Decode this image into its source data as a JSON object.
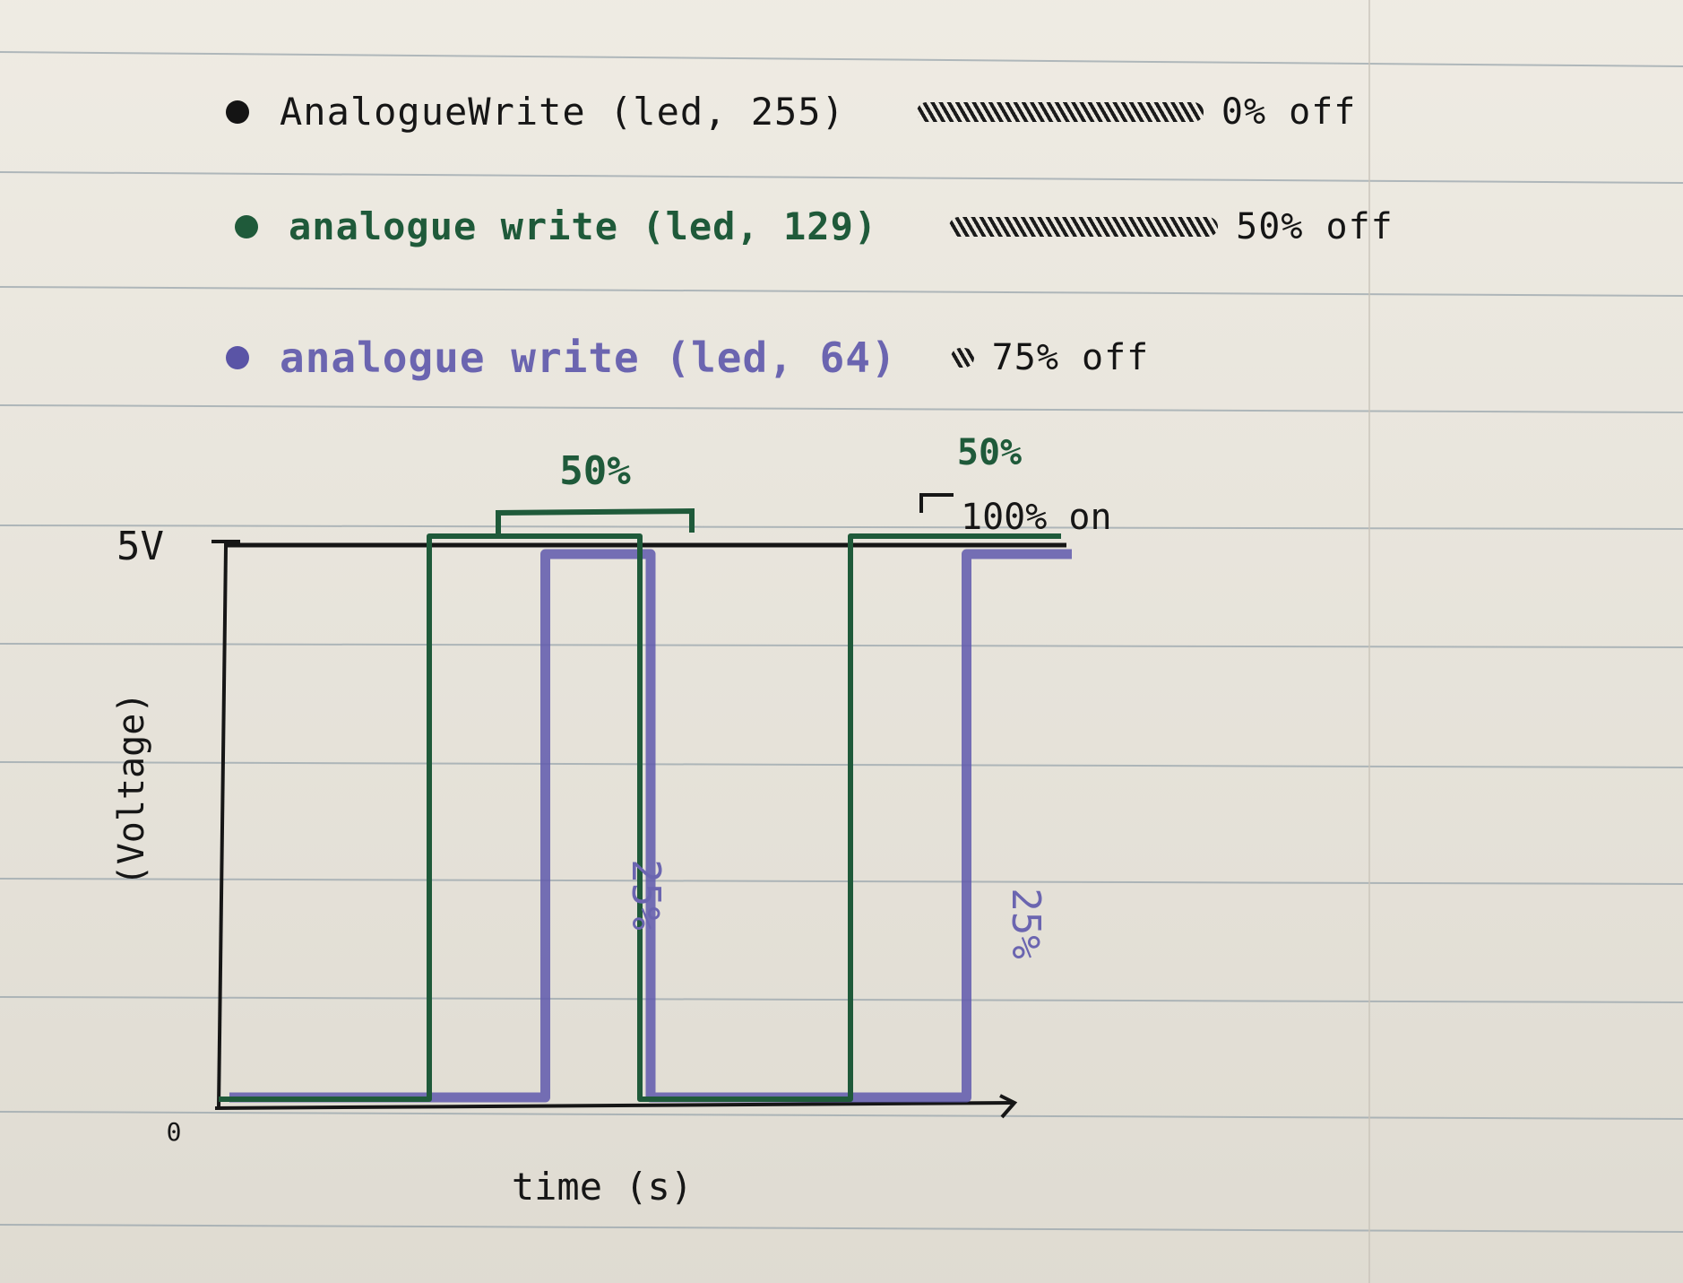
{
  "legend": [
    {
      "call": "AnalogueWrite (led, 255)",
      "duty": "0% off",
      "color": "#161616"
    },
    {
      "call": "analogue write (led, 129)",
      "duty": "50% off",
      "color": "#1f5a3a"
    },
    {
      "call": "analogue write (led, 64)",
      "duty": "75% off",
      "color": "#6b65b0"
    }
  ],
  "axes": {
    "y_top_label": "5V",
    "y_label": "(Voltage)",
    "x_label": "time (s)",
    "origin_label": "0"
  },
  "annotations": {
    "green_pulse_1": "50%",
    "green_pulse_2": "50%",
    "black_level": "100% on",
    "purple_pulse_1": "25%",
    "purple_pulse_2": "25%"
  },
  "colors": {
    "black_ink": "#161616",
    "green_ink": "#1f5a3a",
    "purple_ink": "#5f59ad",
    "paper": "#ebe7dd",
    "rule": "#8c9aa3"
  },
  "chart_data": {
    "type": "line",
    "x_unit": "time (s)",
    "y_unit": "Voltage (V)",
    "ylim": [
      0,
      5
    ],
    "series": [
      {
        "name": "analogueWrite(led,255)",
        "color": "#161616",
        "points": [
          [
            0,
            5
          ],
          [
            10,
            5
          ]
        ]
      },
      {
        "name": "analogueWrite(led,129)",
        "color": "#1f5a3a",
        "points": [
          [
            0,
            0
          ],
          [
            2.5,
            0
          ],
          [
            2.5,
            5
          ],
          [
            5,
            5
          ],
          [
            5,
            0
          ],
          [
            7.5,
            0
          ],
          [
            7.5,
            5
          ],
          [
            10,
            5
          ]
        ]
      },
      {
        "name": "analogueWrite(led,64)",
        "color": "#5f59ad",
        "points": [
          [
            0,
            0
          ],
          [
            3.75,
            0
          ],
          [
            3.75,
            5
          ],
          [
            5,
            5
          ],
          [
            5,
            0
          ],
          [
            8.75,
            0
          ],
          [
            8.75,
            5
          ],
          [
            10,
            5
          ]
        ]
      }
    ]
  }
}
